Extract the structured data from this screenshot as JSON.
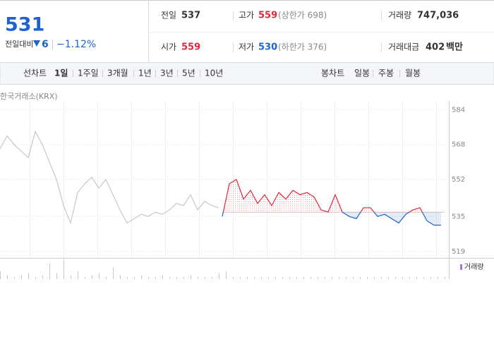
{
  "header": {
    "price": "531",
    "change_label": "전일대비",
    "change": "6",
    "change_pct": "−1.12%"
  },
  "summary": {
    "prev": {
      "label": "전일",
      "value": 537
    },
    "high": {
      "label": "고가",
      "value": 559,
      "note": "(상한가 698)"
    },
    "volume": {
      "label": "거래량",
      "value": "747,036"
    },
    "open": {
      "label": "시가",
      "value": 559
    },
    "low": {
      "label": "저가",
      "value": 530,
      "note": "(하한가 376)"
    },
    "amount": {
      "label": "거래대금",
      "value": 402,
      "unit": "백만"
    }
  },
  "tabs": {
    "line_label": "선차트",
    "line": [
      "1일",
      "1주일",
      "3개월",
      "1년",
      "3년",
      "5년",
      "10년"
    ],
    "candle_label": "봉차트",
    "candle": [
      "일봉",
      "주봉",
      "월봉"
    ]
  },
  "chart": {
    "type": "line",
    "source": "한국거래소(KRX)",
    "ylim": [
      516,
      588
    ],
    "yticks": [
      519,
      535,
      552,
      568,
      584
    ],
    "series": [
      {
        "name": "prev",
        "color": "#c8c8cc",
        "values": [
          566,
          572,
          568,
          565,
          562,
          574,
          568,
          560,
          552,
          540,
          532,
          546,
          550,
          553,
          548,
          552,
          545,
          538,
          532,
          534,
          536,
          535,
          537,
          536,
          538,
          541,
          540,
          545,
          538,
          542,
          540,
          539
        ]
      },
      {
        "name": "today",
        "color": "#e0263d",
        "values": [
          535,
          550,
          552,
          543,
          547,
          541,
          545,
          540,
          546,
          543,
          547,
          545,
          546,
          544,
          538,
          537,
          545,
          537,
          535,
          534,
          539,
          539,
          535,
          536,
          534,
          532,
          536,
          538,
          539,
          533,
          531,
          531
        ]
      }
    ],
    "volume_label": "거래량",
    "volume": [
      4,
      2,
      1,
      2,
      3,
      1,
      2,
      8,
      3,
      10,
      2,
      4,
      1,
      2,
      3,
      1,
      6,
      2,
      1,
      1,
      2,
      1,
      1,
      2,
      1,
      1,
      1,
      2,
      1,
      1,
      1,
      3,
      4,
      1,
      1,
      1,
      1,
      1,
      1,
      1,
      1,
      1,
      1,
      1,
      1,
      1,
      1,
      1,
      1,
      1,
      1,
      1,
      1,
      1,
      1,
      1,
      1,
      1,
      1,
      1,
      1,
      1,
      1,
      1
    ]
  }
}
